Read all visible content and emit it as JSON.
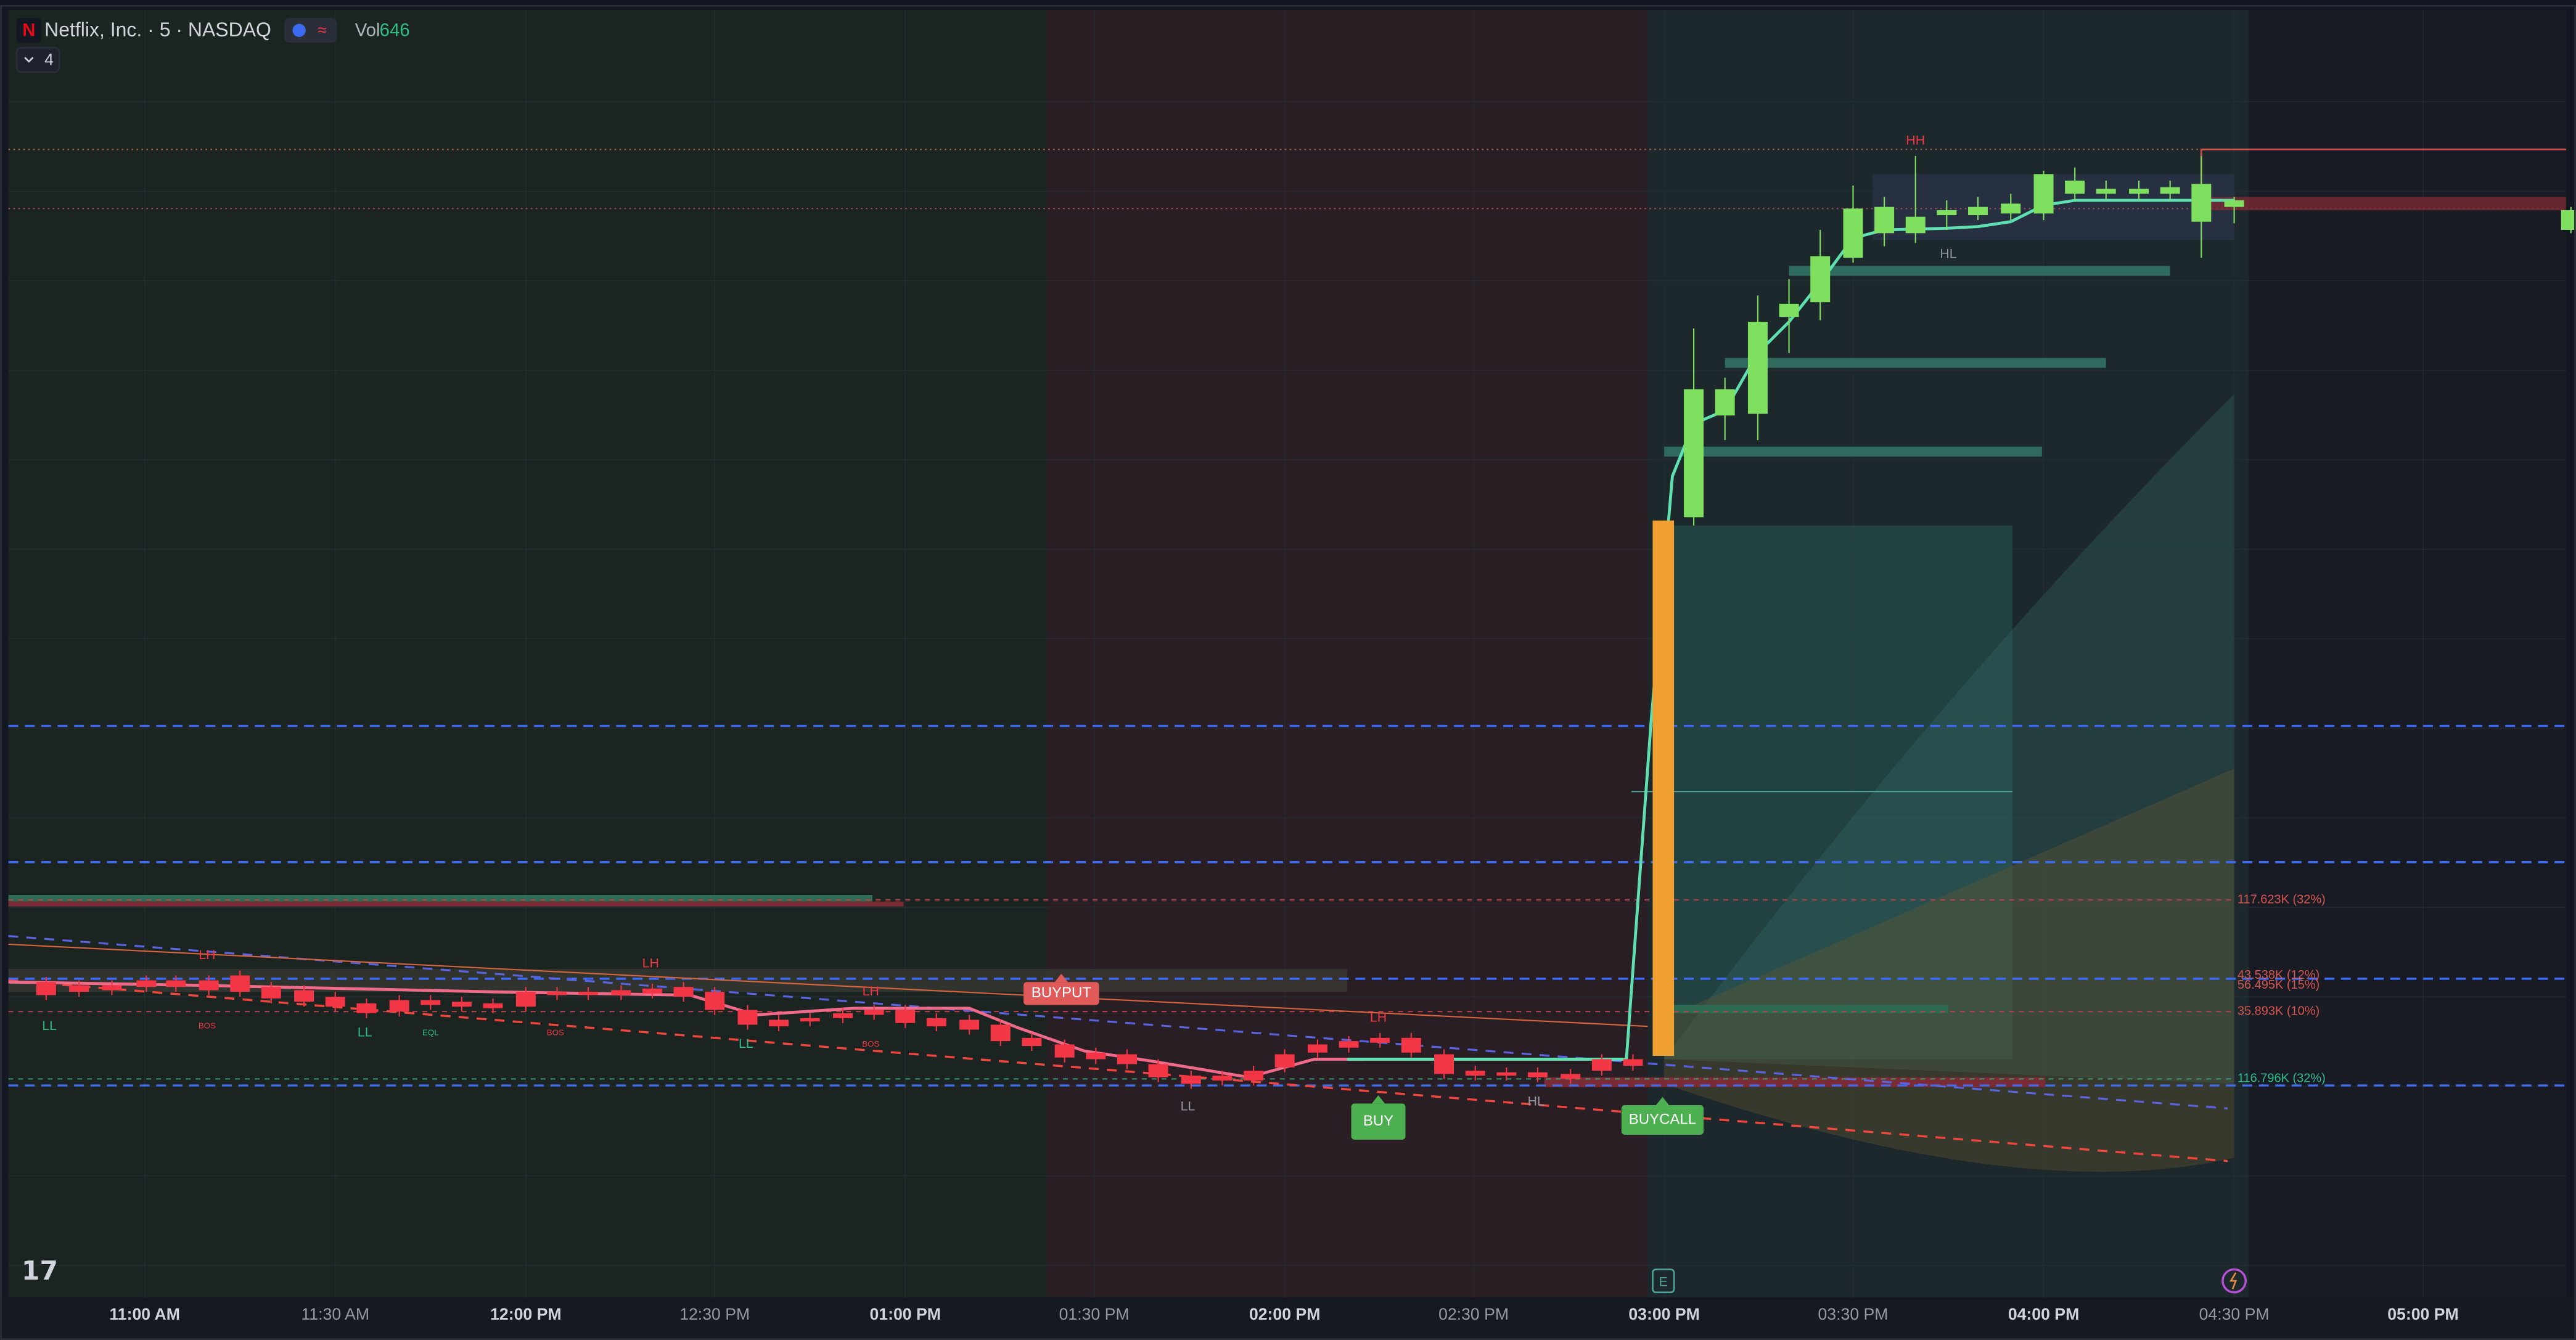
{
  "header": {
    "logo": "N",
    "title": "Netflix, Inc. · 5 · NASDAQ",
    "vol_label": "Vol",
    "vol_value": "646",
    "indicator_count": "4"
  },
  "time_axis": [
    "11:00 AM",
    "11:30 AM",
    "12:00 PM",
    "12:30 PM",
    "01:00 PM",
    "01:30 PM",
    "02:00 PM",
    "02:30 PM",
    "03:00 PM",
    "03:30 PM",
    "04:00 PM",
    "04:30 PM",
    "05:00 PM"
  ],
  "markers": [
    "HH",
    "HL",
    "LH",
    "LH",
    "LH",
    "LH",
    "LL",
    "LL",
    "LL",
    "LL",
    "HL",
    "BOS",
    "BOS",
    "BOS",
    "EQL"
  ],
  "signals": [
    "BUY",
    "BUYPUT",
    "BUYCALL"
  ],
  "levels": [
    "117.623K (32%)",
    "43.538K (12%)",
    "56.495K (15%)",
    "35.893K (10%)",
    "116.796K (32%)"
  ],
  "event": "E"
}
